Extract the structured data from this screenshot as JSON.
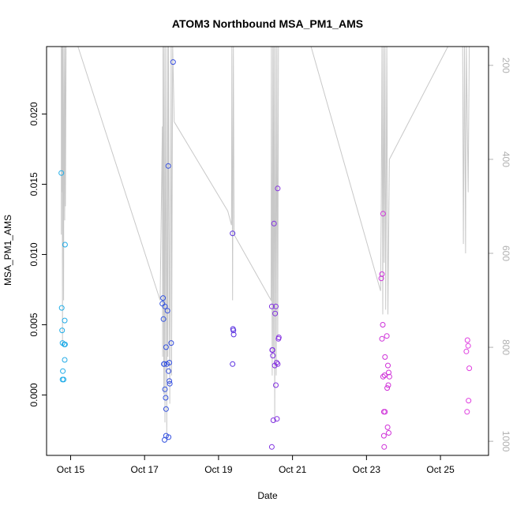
{
  "chart_data": {
    "type": "scatter",
    "title": "ATOM3 Northbound MSA_PM1_AMS",
    "xlabel": "Date",
    "ylabel": "MSA_PM1_AMS",
    "x_range_days": [
      14.35,
      26.3
    ],
    "ylim": [
      -0.0043,
      0.0248
    ],
    "x_ticks": [
      {
        "day": 15,
        "label": "Oct 15"
      },
      {
        "day": 17,
        "label": "Oct 17"
      },
      {
        "day": 19,
        "label": "Oct 19"
      },
      {
        "day": 21,
        "label": "Oct 21"
      },
      {
        "day": 23,
        "label": "Oct 23"
      },
      {
        "day": 25,
        "label": "Oct 25"
      }
    ],
    "y_ticks": [
      {
        "value": 0.0,
        "label": "0.000"
      },
      {
        "value": 0.005,
        "label": "0.005"
      },
      {
        "value": 0.01,
        "label": "0.010"
      },
      {
        "value": 0.015,
        "label": "0.015"
      },
      {
        "value": 0.02,
        "label": "0.020"
      }
    ],
    "secondary_axis": {
      "side": "right",
      "quantity": "pressure",
      "reversed": true,
      "range": [
        160,
        1030
      ],
      "ticks": [
        {
          "value": 200,
          "label": "200"
        },
        {
          "value": 400,
          "label": "400"
        },
        {
          "value": 600,
          "label": "600"
        },
        {
          "value": 800,
          "label": "800"
        },
        {
          "value": 1000,
          "label": "1000"
        }
      ],
      "color": "#b0b0b0"
    },
    "point_color_scale": [
      "#20b0e8",
      "#2860e0",
      "#5030e0",
      "#a030e0",
      "#d030d8",
      "#e040e0"
    ],
    "points": [
      {
        "day": 14.75,
        "y": 0.0158
      },
      {
        "day": 14.76,
        "y": 0.0062
      },
      {
        "day": 14.77,
        "y": 0.0046
      },
      {
        "day": 14.78,
        "y": 0.0037
      },
      {
        "day": 14.79,
        "y": 0.0017
      },
      {
        "day": 14.78,
        "y": 0.0011
      },
      {
        "day": 14.81,
        "y": 0.0011
      },
      {
        "day": 14.83,
        "y": 0.0036
      },
      {
        "day": 14.84,
        "y": 0.0025
      },
      {
        "day": 14.85,
        "y": 0.0107
      },
      {
        "day": 14.84,
        "y": 0.0053
      },
      {
        "day": 14.85,
        "y": 0.0036
      },
      {
        "day": 17.48,
        "y": 0.0065
      },
      {
        "day": 17.5,
        "y": 0.0069
      },
      {
        "day": 17.51,
        "y": 0.0054
      },
      {
        "day": 17.52,
        "y": 0.0022
      },
      {
        "day": 17.53,
        "y": 0.0022
      },
      {
        "day": 17.55,
        "y": 0.0063
      },
      {
        "day": 17.55,
        "y": 0.0004
      },
      {
        "day": 17.57,
        "y": -0.0002
      },
      {
        "day": 17.58,
        "y": 0.0034
      },
      {
        "day": 17.58,
        "y": -0.001
      },
      {
        "day": 17.6,
        "y": 0.0022
      },
      {
        "day": 17.62,
        "y": 0.006
      },
      {
        "day": 17.64,
        "y": 0.0163
      },
      {
        "day": 17.65,
        "y": 0.0017
      },
      {
        "day": 17.67,
        "y": 0.0023
      },
      {
        "day": 17.67,
        "y": 0.001
      },
      {
        "day": 17.68,
        "y": 0.0008
      },
      {
        "day": 17.54,
        "y": -0.0032
      },
      {
        "day": 17.58,
        "y": -0.0029
      },
      {
        "day": 17.65,
        "y": -0.003
      },
      {
        "day": 17.72,
        "y": 0.0037
      },
      {
        "day": 17.77,
        "y": 0.0237
      },
      {
        "day": 19.38,
        "y": 0.0115
      },
      {
        "day": 19.39,
        "y": 0.0047
      },
      {
        "day": 19.4,
        "y": 0.0046
      },
      {
        "day": 19.41,
        "y": 0.0043
      },
      {
        "day": 19.38,
        "y": 0.0022
      },
      {
        "day": 20.44,
        "y": 0.0063
      },
      {
        "day": 20.45,
        "y": 0.0032
      },
      {
        "day": 20.46,
        "y": 0.0032
      },
      {
        "day": 20.47,
        "y": 0.0028
      },
      {
        "day": 20.48,
        "y": -0.0018
      },
      {
        "day": 20.44,
        "y": -0.0037
      },
      {
        "day": 20.5,
        "y": 0.0122
      },
      {
        "day": 20.52,
        "y": 0.0021
      },
      {
        "day": 20.53,
        "y": 0.0058
      },
      {
        "day": 20.55,
        "y": 0.0063
      },
      {
        "day": 20.55,
        "y": 0.0007
      },
      {
        "day": 20.57,
        "y": 0.0023
      },
      {
        "day": 20.58,
        "y": -0.0017
      },
      {
        "day": 20.6,
        "y": 0.0022
      },
      {
        "day": 20.6,
        "y": 0.0147
      },
      {
        "day": 20.62,
        "y": 0.004
      },
      {
        "day": 20.63,
        "y": 0.0041
      },
      {
        "day": 23.4,
        "y": 0.0083
      },
      {
        "day": 23.42,
        "y": 0.0086
      },
      {
        "day": 23.42,
        "y": 0.004
      },
      {
        "day": 23.44,
        "y": 0.005
      },
      {
        "day": 23.45,
        "y": 0.0129
      },
      {
        "day": 23.45,
        "y": 0.0013
      },
      {
        "day": 23.47,
        "y": -0.0012
      },
      {
        "day": 23.49,
        "y": 0.0014
      },
      {
        "day": 23.5,
        "y": -0.0012
      },
      {
        "day": 23.5,
        "y": 0.0027
      },
      {
        "day": 23.47,
        "y": -0.0029
      },
      {
        "day": 23.48,
        "y": -0.0037
      },
      {
        "day": 23.55,
        "y": 0.0042
      },
      {
        "day": 23.56,
        "y": 0.0005
      },
      {
        "day": 23.58,
        "y": 0.0021
      },
      {
        "day": 23.59,
        "y": 0.0007
      },
      {
        "day": 23.6,
        "y": 0.0016
      },
      {
        "day": 23.62,
        "y": 0.0013
      },
      {
        "day": 23.6,
        "y": -0.0027
      },
      {
        "day": 23.57,
        "y": -0.0023
      },
      {
        "day": 25.7,
        "y": 0.0031
      },
      {
        "day": 25.73,
        "y": 0.0039
      },
      {
        "day": 25.75,
        "y": 0.0035
      },
      {
        "day": 25.78,
        "y": 0.0019
      },
      {
        "day": 25.72,
        "y": -0.0012
      },
      {
        "day": 25.76,
        "y": -0.0004
      }
    ],
    "pressure_trace": [
      [
        14.75,
        560
      ],
      [
        14.75,
        160
      ],
      [
        14.76,
        470
      ],
      [
        14.77,
        160
      ],
      [
        14.78,
        790
      ],
      [
        14.79,
        160
      ],
      [
        14.81,
        700
      ],
      [
        14.82,
        160
      ],
      [
        14.84,
        530
      ],
      [
        14.85,
        160
      ],
      [
        14.86,
        500
      ],
      [
        14.88,
        160
      ],
      [
        15.2,
        160
      ],
      [
        17.42,
        700
      ],
      [
        17.48,
        330
      ],
      [
        17.49,
        820
      ],
      [
        17.5,
        160
      ],
      [
        17.52,
        900
      ],
      [
        17.53,
        160
      ],
      [
        17.55,
        960
      ],
      [
        17.57,
        160
      ],
      [
        17.6,
        1000
      ],
      [
        17.62,
        160
      ],
      [
        17.63,
        820
      ],
      [
        17.65,
        160
      ],
      [
        17.68,
        920
      ],
      [
        17.72,
        160
      ],
      [
        17.73,
        860
      ],
      [
        17.76,
        160
      ],
      [
        17.8,
        320
      ],
      [
        19.25,
        510
      ],
      [
        19.35,
        540
      ],
      [
        19.36,
        160
      ],
      [
        19.38,
        700
      ],
      [
        19.4,
        160
      ],
      [
        19.42,
        560
      ],
      [
        20.42,
        700
      ],
      [
        20.43,
        160
      ],
      [
        20.45,
        860
      ],
      [
        20.47,
        160
      ],
      [
        20.48,
        810
      ],
      [
        20.5,
        160
      ],
      [
        20.52,
        960
      ],
      [
        20.54,
        160
      ],
      [
        20.56,
        860
      ],
      [
        20.58,
        160
      ],
      [
        20.6,
        780
      ],
      [
        20.62,
        160
      ],
      [
        20.65,
        160
      ],
      [
        21.5,
        160
      ],
      [
        23.38,
        680
      ],
      [
        23.4,
        490
      ],
      [
        23.42,
        160
      ],
      [
        23.44,
        730
      ],
      [
        23.46,
        160
      ],
      [
        23.48,
        620
      ],
      [
        23.5,
        160
      ],
      [
        23.52,
        720
      ],
      [
        23.55,
        160
      ],
      [
        23.58,
        730
      ],
      [
        23.62,
        400
      ],
      [
        25.2,
        160
      ],
      [
        25.6,
        160
      ],
      [
        25.62,
        580
      ],
      [
        25.65,
        160
      ],
      [
        25.68,
        600
      ],
      [
        25.7,
        160
      ],
      [
        25.75,
        470
      ],
      [
        25.78,
        160
      ]
    ]
  }
}
